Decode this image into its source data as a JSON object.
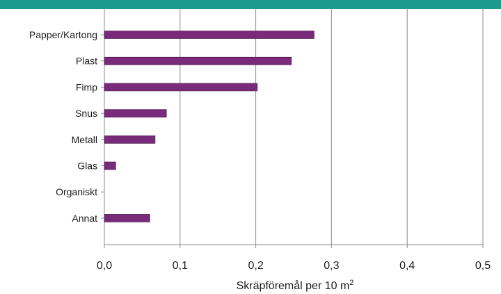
{
  "band_color": "#1e9a8c",
  "bar_color": "#7a2a7a",
  "chart_data": {
    "type": "bar",
    "orientation": "horizontal",
    "categories": [
      "Papper/Kartong",
      "Plast",
      "Fimp",
      "Snus",
      "Metall",
      "Glas",
      "Organiskt",
      "Annat"
    ],
    "values": [
      0.277,
      0.247,
      0.202,
      0.082,
      0.067,
      0.015,
      0,
      0.06
    ],
    "xlim": [
      0,
      0.5
    ],
    "xticks": [
      0.0,
      0.1,
      0.2,
      0.3,
      0.4,
      0.5
    ],
    "xtick_labels": [
      "0,0",
      "0,1",
      "0,2",
      "0,3",
      "0,4",
      "0,5"
    ],
    "xlabel": "Skräpföremål per 10 m",
    "xlabel_superscript": "2",
    "grid": "vertical"
  }
}
